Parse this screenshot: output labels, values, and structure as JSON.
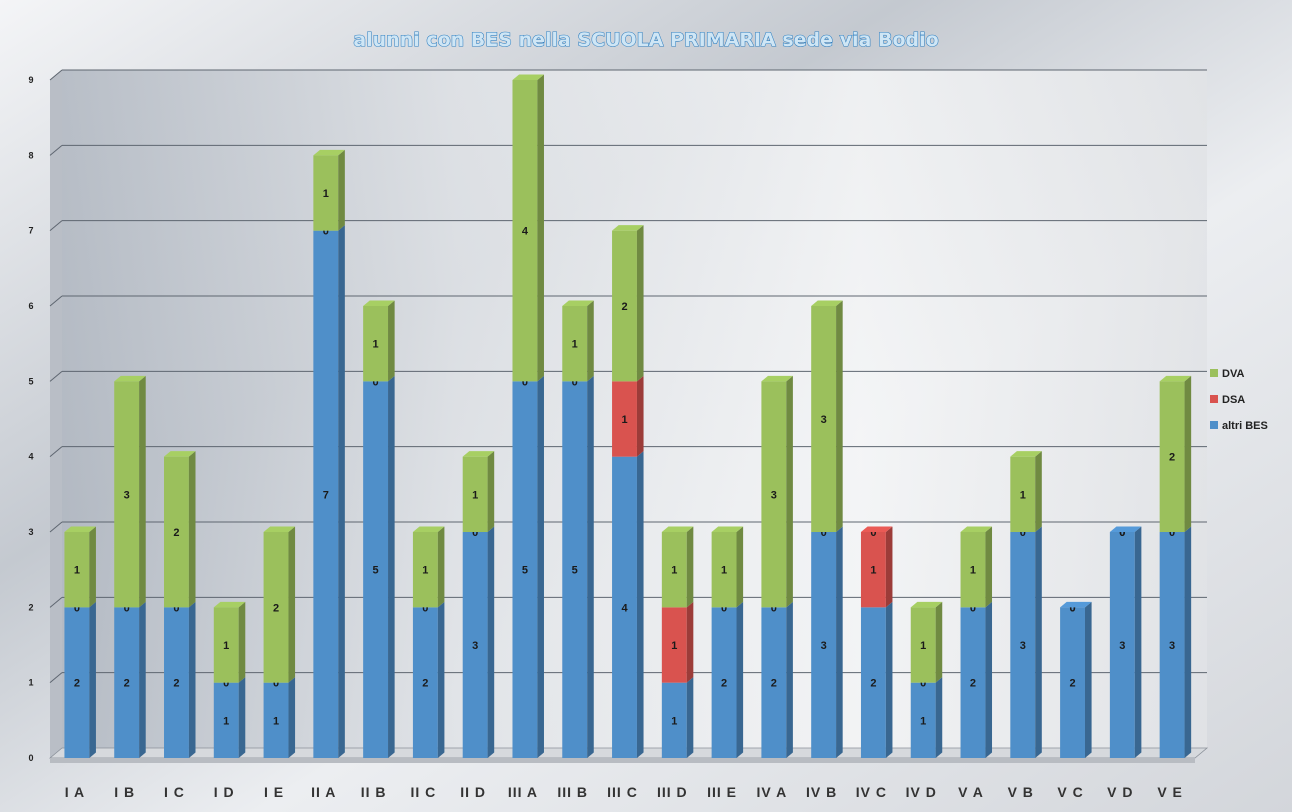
{
  "chart_data": {
    "type": "bar",
    "stacked": true,
    "title": "alunni con BES nella SCUOLA PRIMARIA sede via Bodio",
    "categories": [
      "I A",
      "I B",
      "I C",
      "I D",
      "I E",
      "II A",
      "II B",
      "II C",
      "II D",
      "III A",
      "III B",
      "III C",
      "III D",
      "III E",
      "IV A",
      "IV B",
      "IV C",
      "IV D",
      "V A",
      "V B",
      "V C",
      "V D",
      "V E"
    ],
    "series": [
      {
        "name": "altri BES",
        "color": "#4f8fc9",
        "values": [
          2,
          2,
          2,
          1,
          1,
          7,
          5,
          2,
          3,
          5,
          5,
          4,
          1,
          2,
          2,
          3,
          2,
          1,
          2,
          3,
          2,
          3,
          3
        ]
      },
      {
        "name": "DSA",
        "color": "#d9534f",
        "values": [
          0,
          0,
          0,
          0,
          0,
          0,
          0,
          0,
          0,
          0,
          0,
          1,
          1,
          0,
          0,
          0,
          1,
          0,
          0,
          0,
          0,
          0,
          0
        ]
      },
      {
        "name": "DVA",
        "color": "#9bc05c",
        "values": [
          1,
          3,
          2,
          1,
          2,
          1,
          1,
          1,
          1,
          4,
          1,
          2,
          1,
          1,
          3,
          3,
          0,
          1,
          1,
          1,
          0,
          0,
          2
        ]
      }
    ],
    "ylim": [
      0,
      9
    ],
    "yticks": [
      0,
      1,
      2,
      3,
      4,
      5,
      6,
      7,
      8,
      9
    ],
    "grid": true,
    "legend": "right",
    "legend_order": [
      "DVA",
      "DSA",
      "altri BES"
    ]
  }
}
